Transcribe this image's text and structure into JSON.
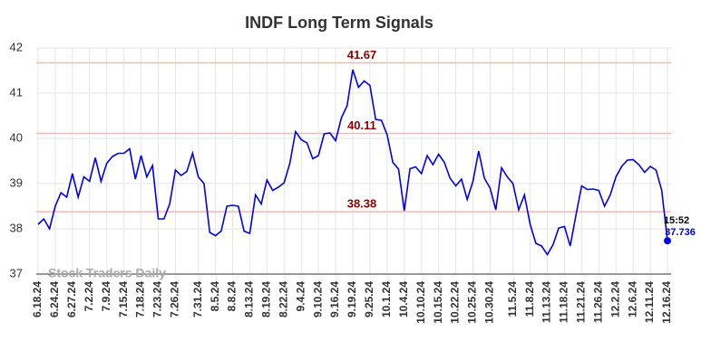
{
  "chart_data": {
    "type": "line",
    "title": "INDF Long Term Signals",
    "watermark": "Stock Traders Daily",
    "categories": [
      "6.18.24",
      null,
      null,
      "6.24.24",
      null,
      null,
      "6.27.24",
      null,
      null,
      "7.2.24",
      null,
      null,
      "7.9.24",
      null,
      null,
      "7.15.24",
      null,
      null,
      "7.18.24",
      null,
      null,
      "7.23.24",
      null,
      null,
      "7.26.24",
      null,
      null,
      null,
      "7.31.24",
      null,
      null,
      "8.5.24",
      null,
      null,
      "8.8.24",
      null,
      null,
      "8.13.24",
      null,
      null,
      "8.19.24",
      null,
      null,
      "8.22.24",
      null,
      null,
      "9.4.24",
      null,
      null,
      "9.10.24",
      null,
      null,
      "9.16.24",
      null,
      null,
      "9.19.24",
      null,
      null,
      "9.25.24",
      null,
      null,
      "10.1.24",
      null,
      null,
      "10.4.24",
      null,
      null,
      "10.10.24",
      null,
      null,
      "10.15.24",
      null,
      null,
      "10.22.24",
      null,
      null,
      "10.25.24",
      null,
      null,
      "10.30.24",
      null,
      null,
      null,
      "11.5.24",
      null,
      null,
      "11.8.24",
      null,
      null,
      "11.13.24",
      null,
      null,
      "11.18.24",
      null,
      null,
      "11.21.24",
      null,
      null,
      "11.26.24",
      null,
      null,
      "12.2.24",
      null,
      null,
      "12.6.24",
      null,
      null,
      "12.11.24",
      null,
      null,
      "12.16.24"
    ],
    "series": [
      {
        "name": "INDF",
        "color": "#0000ee",
        "values": [
          38.1,
          38.22,
          38.0,
          38.5,
          38.8,
          38.7,
          39.22,
          38.7,
          39.15,
          39.05,
          39.57,
          39.05,
          39.45,
          39.6,
          39.67,
          39.67,
          39.77,
          39.1,
          39.62,
          39.15,
          39.4,
          38.22,
          38.22,
          38.55,
          39.3,
          39.18,
          39.27,
          39.67,
          39.15,
          39.0,
          37.92,
          37.85,
          37.95,
          38.5,
          38.52,
          38.5,
          37.95,
          37.9,
          38.75,
          38.55,
          39.08,
          38.85,
          38.92,
          39.02,
          39.45,
          40.15,
          39.97,
          39.9,
          39.55,
          39.62,
          40.1,
          40.12,
          39.95,
          40.45,
          40.72,
          41.52,
          41.13,
          41.27,
          41.17,
          40.42,
          40.4,
          40.08,
          39.47,
          39.32,
          38.4,
          39.33,
          39.37,
          39.22,
          39.62,
          39.42,
          39.65,
          39.47,
          39.12,
          38.95,
          39.1,
          38.65,
          39.05,
          39.72,
          39.12,
          38.9,
          38.42,
          39.35,
          39.15,
          39.0,
          38.42,
          38.75,
          38.1,
          37.68,
          37.62,
          37.43,
          37.65,
          38.02,
          38.05,
          37.62,
          38.3,
          38.95,
          38.87,
          38.88,
          38.85,
          38.5,
          38.75,
          39.15,
          39.38,
          39.52,
          39.53,
          39.42,
          39.25,
          39.38,
          39.3,
          38.85,
          37.736
        ]
      }
    ],
    "last_time": "15:52",
    "levels": [
      41.67,
      40.11,
      38.38
    ],
    "level_color": "#ffb3b3",
    "level_label_color": "#8b0000",
    "ylim": [
      37,
      42
    ],
    "yticks": [
      37,
      38,
      39,
      40,
      41,
      42
    ],
    "grid": true
  }
}
